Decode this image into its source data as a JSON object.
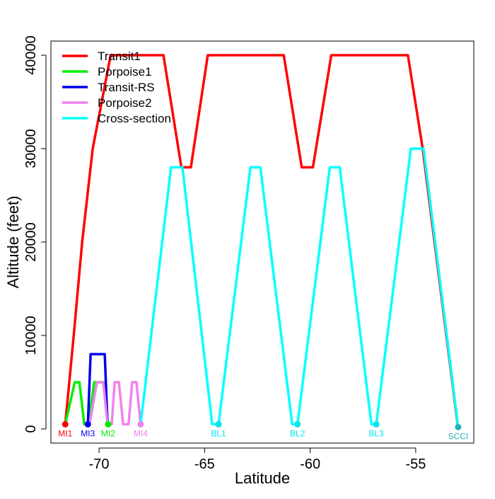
{
  "chart_data": {
    "type": "line",
    "x_label": "Latitude",
    "y_label": "Altitude (feet)",
    "xlim": [
      -72.28,
      -52.25
    ],
    "ylim": [
      -1515,
      41515
    ],
    "xticks": [
      -70,
      -65,
      -60,
      -55
    ],
    "yticks": [
      0,
      10000,
      20000,
      30000,
      40000
    ],
    "legend": "top-left",
    "series": [
      {
        "name": "Transit1",
        "color": "#ff0000",
        "x": [
          -71.6,
          -71.2,
          -70.8,
          -70.3,
          -69.45,
          -66.95,
          -66.1,
          -65.65,
          -64.85,
          -61.25,
          -60.4,
          -59.87,
          -59.0,
          -55.37,
          -54.67,
          -53.0
        ],
        "values": [
          500,
          10000,
          20000,
          30000,
          40000,
          40000,
          28000,
          28000,
          40000,
          40000,
          28000,
          28000,
          40000,
          40000,
          30000,
          200
        ]
      },
      {
        "name": "Porpoise1",
        "color": "#00ee00",
        "x": [
          -71.6,
          -71.15,
          -70.93,
          -70.7,
          -70.5,
          -70.23,
          -69.77,
          -69.57
        ],
        "values": [
          500,
          5000,
          5000,
          500,
          500,
          5000,
          5000,
          500
        ]
      },
      {
        "name": "Transit-RS",
        "color": "#0000ee",
        "x": [
          -70.53,
          -70.4,
          -69.73,
          -69.6
        ],
        "values": [
          500,
          8000,
          8000,
          500
        ]
      },
      {
        "name": "Porpoise2",
        "color": "#ee82ee",
        "x": [
          -70.45,
          -70.1,
          -69.8,
          -69.6,
          -69.4,
          -69.26,
          -69.06,
          -68.86,
          -68.6,
          -68.43,
          -68.23,
          -68.03
        ],
        "values": [
          500,
          5000,
          5000,
          500,
          500,
          5000,
          5000,
          500,
          500,
          5000,
          5000,
          500
        ]
      },
      {
        "name": "Cross-section",
        "color": "#00ffff",
        "x": [
          -68.03,
          -66.59,
          -66.05,
          -64.64,
          -64.34,
          -62.83,
          -62.36,
          -60.85,
          -60.6,
          -59.07,
          -58.6,
          -57.1,
          -56.87,
          -55.23,
          -54.63,
          -52.99
        ],
        "values": [
          500,
          28000,
          28000,
          500,
          500,
          28000,
          28000,
          500,
          500,
          28000,
          28000,
          500,
          500,
          30000,
          30000,
          200
        ]
      }
    ],
    "points": [
      {
        "name": "MI1",
        "x": -71.6,
        "y": 500,
        "color": "#ff0000"
      },
      {
        "name": "MI3",
        "x": -70.53,
        "y": 500,
        "color": "#0000ee"
      },
      {
        "name": "MI2",
        "x": -69.57,
        "y": 500,
        "color": "#00ee00"
      },
      {
        "name": "MI4",
        "x": -68.03,
        "y": 500,
        "color": "#ee82ee"
      },
      {
        "name": "BL1",
        "x": -64.34,
        "y": 500,
        "color": "#00e5ee"
      },
      {
        "name": "BL2",
        "x": -60.6,
        "y": 500,
        "color": "#00e5ee"
      },
      {
        "name": "BL3",
        "x": -56.87,
        "y": 500,
        "color": "#00e5ee"
      },
      {
        "name": "SCCI",
        "x": -52.99,
        "y": 200,
        "color": "#2ab0b8"
      }
    ]
  }
}
